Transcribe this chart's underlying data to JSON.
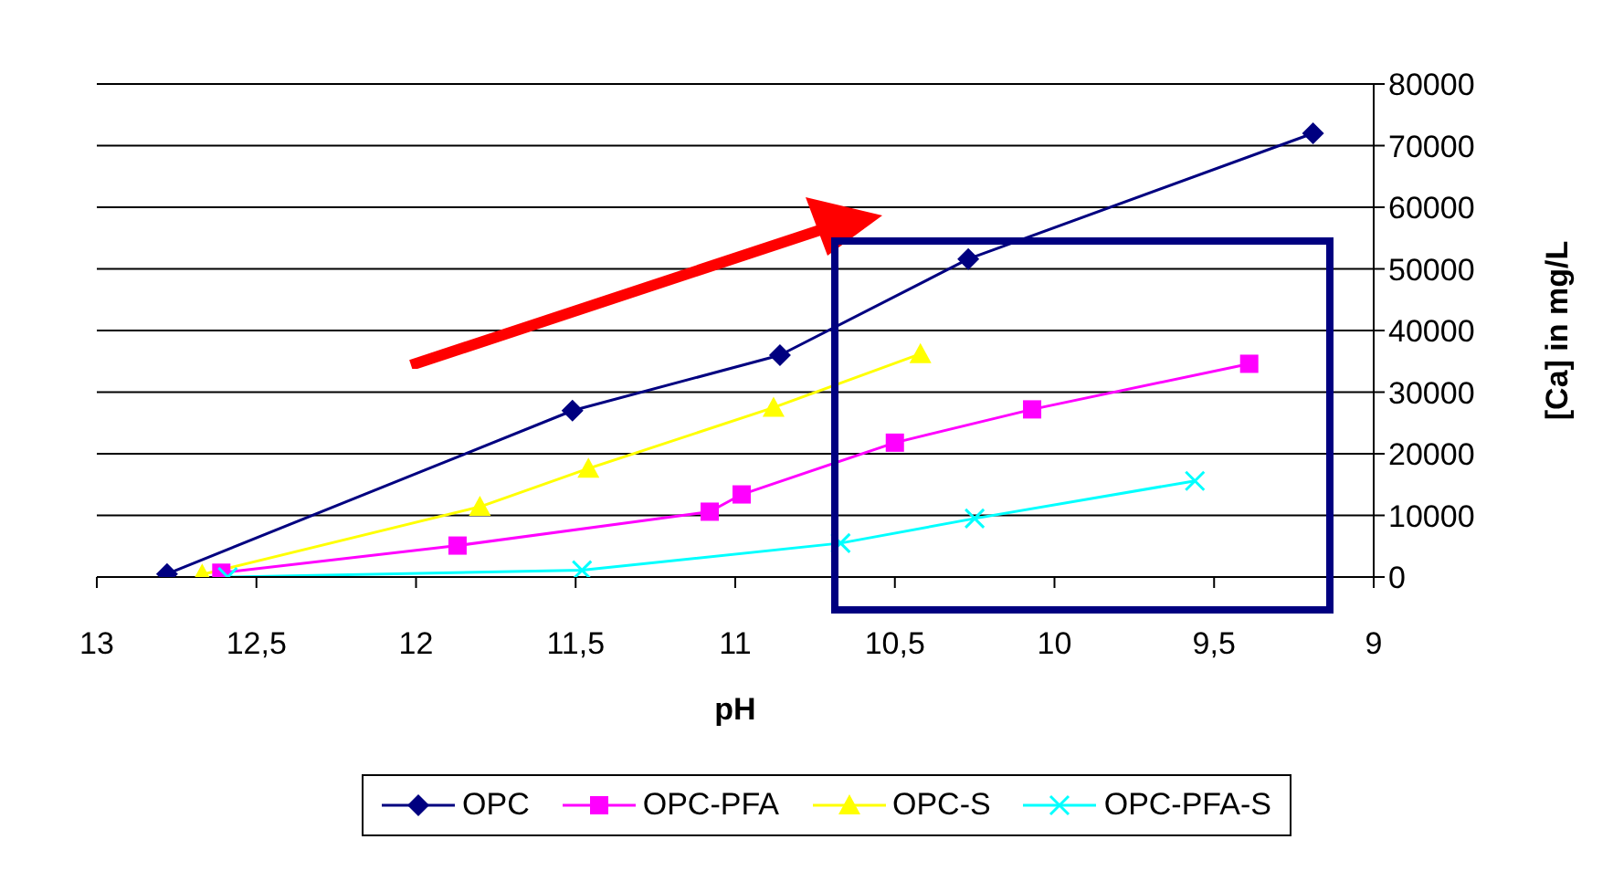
{
  "chart_data": {
    "type": "line",
    "xlabel": "pH",
    "ylabel": "[Ca] in mg/L",
    "xlim": [
      13,
      9
    ],
    "xticks": [
      13,
      {
        "value": 12.5,
        "label": "12,5"
      },
      12,
      {
        "value": 11.5,
        "label": "11,5"
      },
      11,
      {
        "value": 10.5,
        "label": "10,5"
      },
      10,
      {
        "value": 9.5,
        "label": "9,5"
      },
      9
    ],
    "ylim": [
      0,
      80000
    ],
    "yticks": [
      0,
      10000,
      20000,
      30000,
      40000,
      50000,
      60000,
      70000,
      80000
    ],
    "grid": "y",
    "legend": "bottom",
    "line_style": "solid",
    "series": [
      {
        "name": "OPC",
        "color": "#000080",
        "marker": "diamond",
        "x": [
          12.78,
          11.51,
          10.86,
          10.27,
          9.19
        ],
        "values": [
          500,
          27000,
          36000,
          51600,
          72000
        ]
      },
      {
        "name": "OPC-PFA",
        "color": "#ff00ff",
        "marker": "square",
        "x": [
          12.61,
          11.87,
          11.08,
          10.98,
          10.5,
          10.07,
          9.39
        ],
        "values": [
          700,
          5100,
          10600,
          13400,
          21800,
          27200,
          34600
        ]
      },
      {
        "name": "OPC-S",
        "color": "#ffff00",
        "marker": "triangle",
        "x": [
          12.67,
          11.8,
          11.46,
          10.88,
          10.42
        ],
        "values": [
          400,
          11400,
          17600,
          27500,
          36200
        ]
      },
      {
        "name": "OPC-PFA-S",
        "color": "#00ffff",
        "marker": "cross",
        "x": [
          12.59,
          11.48,
          10.67,
          10.25,
          9.56
        ],
        "values": [
          0,
          1100,
          5500,
          9500,
          15600
        ]
      }
    ]
  }
}
